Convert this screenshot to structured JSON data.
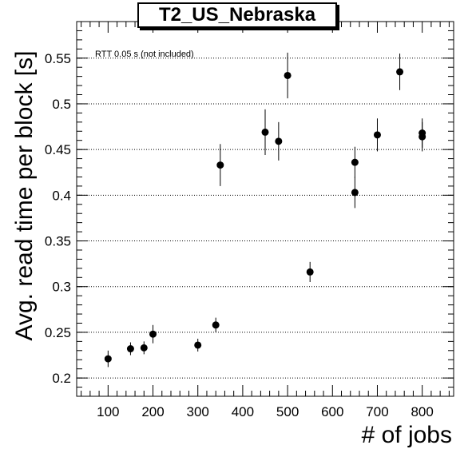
{
  "chart_data": {
    "type": "scatter",
    "title": "T2_US_Nebraska",
    "annotation": "RTT 0.05 s (not included)",
    "xlabel": "# of jobs",
    "ylabel": "Avg. read time per block [s]",
    "xlim": [
      30,
      870
    ],
    "ylim": [
      0.18,
      0.59
    ],
    "xticks": [
      100,
      200,
      300,
      400,
      500,
      600,
      700,
      800
    ],
    "yticks": [
      0.2,
      0.25,
      0.3,
      0.35,
      0.4,
      0.45,
      0.5,
      0.55
    ],
    "ytick_labels": [
      "0.2",
      "0.25",
      "0.3",
      "0.35",
      "0.4",
      "0.45",
      "0.5",
      "0.55"
    ],
    "grid": "horizontal dotted",
    "marker_color": "#000000",
    "points": [
      {
        "x": 100,
        "y": 0.221,
        "err": 0.009
      },
      {
        "x": 150,
        "y": 0.232,
        "err": 0.007
      },
      {
        "x": 180,
        "y": 0.233,
        "err": 0.007
      },
      {
        "x": 200,
        "y": 0.248,
        "err": 0.01
      },
      {
        "x": 300,
        "y": 0.236,
        "err": 0.007
      },
      {
        "x": 340,
        "y": 0.258,
        "err": 0.008
      },
      {
        "x": 350,
        "y": 0.433,
        "err": 0.023
      },
      {
        "x": 450,
        "y": 0.469,
        "err": 0.025
      },
      {
        "x": 480,
        "y": 0.459,
        "err": 0.021
      },
      {
        "x": 500,
        "y": 0.531,
        "err": 0.025
      },
      {
        "x": 550,
        "y": 0.316,
        "err": 0.011
      },
      {
        "x": 650,
        "y": 0.436,
        "err": 0.017
      },
      {
        "x": 650,
        "y": 0.403,
        "err": 0.017
      },
      {
        "x": 700,
        "y": 0.466,
        "err": 0.018
      },
      {
        "x": 750,
        "y": 0.535,
        "err": 0.02
      },
      {
        "x": 800,
        "y": 0.468,
        "err": 0.016
      },
      {
        "x": 800,
        "y": 0.464,
        "err": 0.016
      }
    ]
  }
}
